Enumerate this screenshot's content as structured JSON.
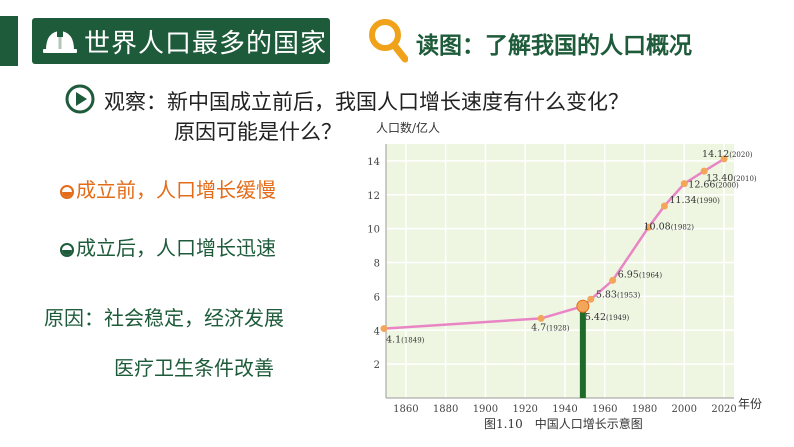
{
  "header": {
    "title": "世界人口最多的国家",
    "read_map": "读图：了解我国的人口概况"
  },
  "question": {
    "line1": "观察：新中国成立前后，我国人口增长速度有什么变化？",
    "line2": "原因可能是什么？"
  },
  "answers": {
    "before": "成立前，人口增长缓慢",
    "after": "成立后，人口增长迅速",
    "reason1": "原因：社会稳定，经济发展",
    "reason2": "医疗卫生条件改善"
  },
  "colors": {
    "brand_green": "#1e5b3a",
    "orange": "#e36c1a",
    "line_pink": "#e985c4",
    "point_orange": "#f3a65a"
  },
  "icons": {
    "banner": "helmet-icon",
    "read": "magnifier-icon",
    "question": "play-icon"
  },
  "chart_data": {
    "type": "line",
    "ylabel": "人口数/亿人",
    "xlabel": "年份",
    "caption": "图1.10　中国人口增长示意图",
    "xlim": [
      1850,
      2025
    ],
    "ylim": [
      0,
      15
    ],
    "x_ticks": [
      "1860",
      "1880",
      "1900",
      "1920",
      "1940",
      "1960",
      "1980",
      "2000",
      "2020"
    ],
    "y_ticks": [
      "2",
      "4",
      "6",
      "8",
      "10",
      "12",
      "14"
    ],
    "highlight_year": 1949,
    "points": [
      {
        "x": 1849,
        "y": 4.1,
        "label": "4.1",
        "year_label": "(1849)"
      },
      {
        "x": 1928,
        "y": 4.7,
        "label": "4.7",
        "year_label": "(1928)"
      },
      {
        "x": 1949,
        "y": 5.42,
        "label": "5.42",
        "year_label": "(1949)"
      },
      {
        "x": 1953,
        "y": 5.83,
        "label": "5.83",
        "year_label": "(1953)"
      },
      {
        "x": 1964,
        "y": 6.95,
        "label": "6.95",
        "year_label": "(1964)"
      },
      {
        "x": 1982,
        "y": 10.08,
        "label": "10.08",
        "year_label": "(1982)"
      },
      {
        "x": 1990,
        "y": 11.34,
        "label": "11.34",
        "year_label": "(1990)"
      },
      {
        "x": 2000,
        "y": 12.66,
        "label": "12.66",
        "year_label": "(2000)"
      },
      {
        "x": 2010,
        "y": 13.4,
        "label": "13.40",
        "year_label": "(2010)"
      },
      {
        "x": 2020,
        "y": 14.12,
        "label": "14.12",
        "year_label": "(2020)"
      }
    ]
  }
}
